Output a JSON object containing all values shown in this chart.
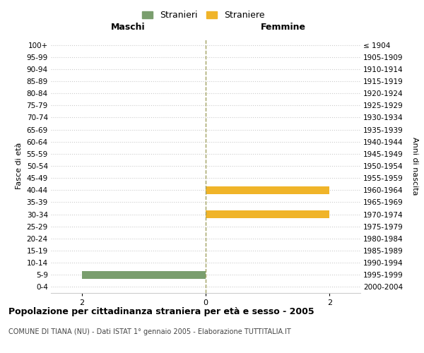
{
  "age_groups": [
    "100+",
    "95-99",
    "90-94",
    "85-89",
    "80-84",
    "75-79",
    "70-74",
    "65-69",
    "60-64",
    "55-59",
    "50-54",
    "45-49",
    "40-44",
    "35-39",
    "30-34",
    "25-29",
    "20-24",
    "15-19",
    "10-14",
    "5-9",
    "0-4"
  ],
  "birth_years": [
    "≤ 1904",
    "1905-1909",
    "1910-1914",
    "1915-1919",
    "1920-1924",
    "1925-1929",
    "1930-1934",
    "1935-1939",
    "1940-1944",
    "1945-1949",
    "1950-1954",
    "1955-1959",
    "1960-1964",
    "1965-1969",
    "1970-1974",
    "1975-1979",
    "1980-1984",
    "1985-1989",
    "1990-1994",
    "1995-1999",
    "2000-2004"
  ],
  "males_values": [
    0,
    0,
    0,
    0,
    0,
    0,
    0,
    0,
    0,
    0,
    0,
    0,
    0,
    0,
    0,
    0,
    0,
    0,
    0,
    2,
    0
  ],
  "females_values": [
    0,
    0,
    0,
    0,
    0,
    0,
    0,
    0,
    0,
    0,
    0,
    0,
    2,
    0,
    2,
    0,
    0,
    0,
    0,
    0,
    0
  ],
  "male_color": "#7a9e6e",
  "female_color": "#f0b429",
  "male_label": "Stranieri",
  "female_label": "Straniere",
  "xlim": 2.5,
  "xticks": [
    -2,
    0,
    2
  ],
  "xticklabels": [
    "2",
    "0",
    "2"
  ],
  "title": "Popolazione per cittadinanza straniera per età e sesso - 2005",
  "subtitle": "COMUNE DI TIANA (NU) - Dati ISTAT 1° gennaio 2005 - Elaborazione TUTTITALIA.IT",
  "ylabel_left": "Fasce di età",
  "ylabel_right": "Anni di nascita",
  "header_left": "Maschi",
  "header_right": "Femmine",
  "background_color": "#ffffff",
  "grid_color": "#cccccc",
  "center_line_color": "#a0a060"
}
